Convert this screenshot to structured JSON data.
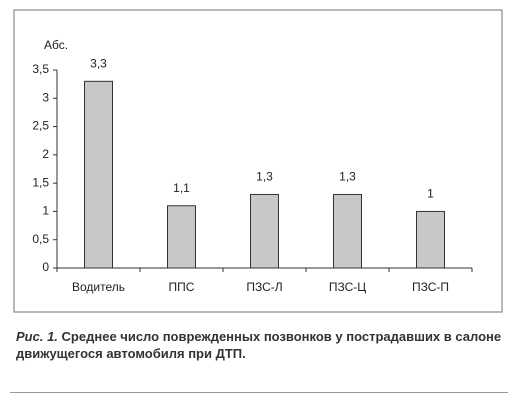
{
  "chart_data": {
    "type": "bar",
    "y_label": "Абс.",
    "categories": [
      "Водитель",
      "ППС",
      "ПЗС-Л",
      "ПЗС-Ц",
      "ПЗС-П"
    ],
    "values": [
      3.3,
      1.1,
      1.3,
      1.3,
      1
    ],
    "value_labels": [
      "3,3",
      "1,1",
      "1,3",
      "1,3",
      "1"
    ],
    "color": "#c8c8c8",
    "ylim": [
      0,
      3.5
    ],
    "yticks": [
      0,
      {
        "value": 0.5,
        "label": "0,5"
      },
      1,
      {
        "value": 1.5,
        "label": "1,5"
      },
      2,
      {
        "value": 2.5,
        "label": "2,5"
      },
      3,
      {
        "value": 3.5,
        "label": "3,5"
      }
    ],
    "grid": false
  },
  "caption": {
    "label": "Рис. 1.",
    "text": "Среднее число поврежденных позвонков у пострадавших в салоне движущегося автомобиля при ДТП."
  }
}
